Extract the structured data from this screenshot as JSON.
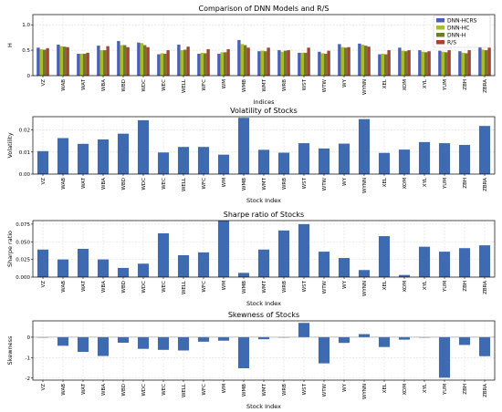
{
  "figure": {
    "indices": [
      "VZ",
      "WAB",
      "WAT",
      "WBA",
      "WBD",
      "WDC",
      "WEC",
      "WELL",
      "WFC",
      "WM",
      "WMB",
      "WMT",
      "WRB",
      "WST",
      "WTW",
      "WY",
      "WYNN",
      "XEL",
      "XOM",
      "XYL",
      "YUM",
      "ZBH",
      "ZBRA"
    ]
  },
  "chart_data": [
    {
      "type": "bar",
      "title": "Comparison of DNN Models and R/S",
      "xlabel": "Indices",
      "ylabel": "H",
      "ylim": [
        0,
        1.2
      ],
      "yticks": [
        "0",
        "0.5",
        "1.0"
      ],
      "grid": true,
      "legend": "top-right",
      "series": [
        {
          "name": "DNN-HCRS",
          "color": "#4a5fb5",
          "values": [
            0.55,
            0.61,
            0.43,
            0.59,
            0.68,
            0.65,
            0.42,
            0.61,
            0.43,
            0.43,
            0.7,
            0.48,
            0.5,
            0.45,
            0.47,
            0.62,
            0.63,
            0.42,
            0.55,
            0.5,
            0.49,
            0.48,
            0.57
          ]
        },
        {
          "name": "DNN-HC",
          "color": "#a8bc2c",
          "values": [
            0.52,
            0.58,
            0.43,
            0.5,
            0.6,
            0.64,
            0.44,
            0.5,
            0.45,
            0.46,
            0.62,
            0.49,
            0.47,
            0.45,
            0.44,
            0.56,
            0.61,
            0.43,
            0.49,
            0.47,
            0.47,
            0.45,
            0.51
          ]
        },
        {
          "name": "DNN-H",
          "color": "#6d7a2e",
          "values": [
            0.51,
            0.57,
            0.43,
            0.5,
            0.6,
            0.6,
            0.43,
            0.51,
            0.44,
            0.46,
            0.6,
            0.48,
            0.49,
            0.45,
            0.43,
            0.55,
            0.59,
            0.42,
            0.48,
            0.46,
            0.46,
            0.44,
            0.5
          ]
        },
        {
          "name": "R/S",
          "color": "#a8432f",
          "values": [
            0.54,
            0.56,
            0.45,
            0.58,
            0.56,
            0.56,
            0.5,
            0.57,
            0.52,
            0.52,
            0.55,
            0.55,
            0.5,
            0.55,
            0.49,
            0.56,
            0.57,
            0.5,
            0.5,
            0.48,
            0.5,
            0.5,
            0.55
          ]
        }
      ]
    },
    {
      "type": "bar",
      "title": "Volatility of Stocks",
      "xlabel": "Stock Index",
      "ylabel": "Volatility",
      "ylim": [
        0,
        0.026
      ],
      "yticks": [
        "0.00",
        "0.01",
        "0.02"
      ],
      "grid": true,
      "series": [
        {
          "name": "",
          "color": "#3d6ab0",
          "values": [
            0.0104,
            0.0163,
            0.0137,
            0.0157,
            0.0183,
            0.0244,
            0.0098,
            0.0123,
            0.0123,
            0.0088,
            0.0255,
            0.011,
            0.0097,
            0.014,
            0.0116,
            0.0138,
            0.0249,
            0.0096,
            0.0111,
            0.0145,
            0.014,
            0.0132,
            0.0218
          ]
        }
      ]
    },
    {
      "type": "bar",
      "title": "Sharpe ratio of Stocks",
      "xlabel": "Stock Index",
      "ylabel": "Sharpe ratio",
      "ylim": [
        0,
        0.08
      ],
      "yticks": [
        "0.000",
        "0.025",
        "0.050",
        "0.075"
      ],
      "grid": true,
      "series": [
        {
          "name": "",
          "color": "#3d6ab0",
          "values": [
            0.039,
            0.025,
            0.04,
            0.025,
            0.013,
            0.019,
            0.062,
            0.031,
            0.035,
            0.08,
            0.006,
            0.039,
            0.066,
            0.075,
            0.036,
            0.027,
            0.01,
            0.058,
            0.003,
            0.043,
            0.036,
            0.041,
            0.045
          ]
        }
      ]
    },
    {
      "type": "bar",
      "title": "Skewness of Stocks",
      "xlabel": "Stock Index",
      "ylabel": "Skewness",
      "ylim": [
        -2.1,
        0.8
      ],
      "yticks": [
        "-2",
        "-1",
        "0"
      ],
      "grid": true,
      "series": [
        {
          "name": "",
          "color": "#3d6ab0",
          "values": [
            -0.02,
            -0.42,
            -0.72,
            -0.92,
            -0.27,
            -0.57,
            -0.62,
            -0.65,
            -0.22,
            -0.17,
            -1.52,
            -0.1,
            0.0,
            0.7,
            -1.28,
            -0.28,
            0.15,
            -0.48,
            -0.12,
            -0.02,
            -1.98,
            -0.38,
            -0.93
          ]
        }
      ]
    }
  ]
}
